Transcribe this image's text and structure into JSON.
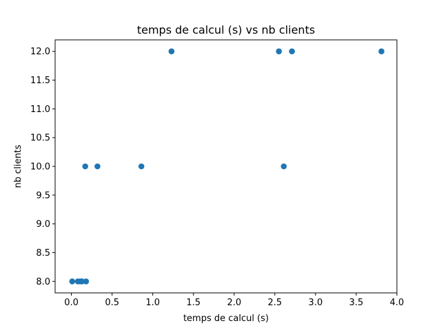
{
  "chart_data": {
    "type": "scatter",
    "title": "temps de calcul (s)   vs   nb clients",
    "xlabel": "temps de calcul (s)",
    "ylabel": "nb clients",
    "xlim": [
      -0.2,
      4.0
    ],
    "ylim": [
      7.8,
      12.2
    ],
    "x_ticks": [
      0.0,
      0.5,
      1.0,
      1.5,
      2.0,
      2.5,
      3.0,
      3.5,
      4.0
    ],
    "x_tick_labels": [
      "0.0",
      "0.5",
      "1.0",
      "1.5",
      "2.0",
      "2.5",
      "3.0",
      "3.5",
      "4.0"
    ],
    "y_ticks": [
      8.0,
      8.5,
      9.0,
      9.5,
      10.0,
      10.5,
      11.0,
      11.5,
      12.0
    ],
    "y_tick_labels": [
      "8.0",
      "8.5",
      "9.0",
      "9.5",
      "10.0",
      "10.5",
      "11.0",
      "11.5",
      "12.0"
    ],
    "grid": false,
    "color": "#1f77b4",
    "points": [
      {
        "x": 0.01,
        "y": 8
      },
      {
        "x": 0.08,
        "y": 8
      },
      {
        "x": 0.11,
        "y": 8
      },
      {
        "x": 0.13,
        "y": 8
      },
      {
        "x": 0.18,
        "y": 8
      },
      {
        "x": 0.17,
        "y": 10
      },
      {
        "x": 0.32,
        "y": 10
      },
      {
        "x": 0.86,
        "y": 10
      },
      {
        "x": 2.61,
        "y": 10
      },
      {
        "x": 1.23,
        "y": 12
      },
      {
        "x": 2.55,
        "y": 12
      },
      {
        "x": 2.71,
        "y": 12
      },
      {
        "x": 3.81,
        "y": 12
      }
    ]
  }
}
